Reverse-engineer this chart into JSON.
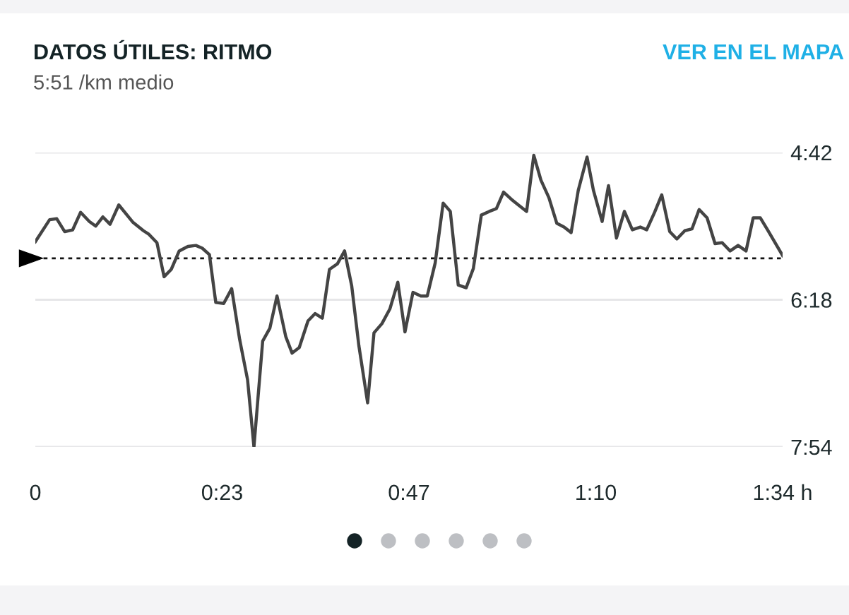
{
  "chart_data": {
    "type": "line",
    "title": "DATOS ÚTILES: RITMO",
    "subtitle": "5:51 /km medio",
    "annotations": [
      "VER EN EL MAPA"
    ],
    "x": [
      0,
      1.8,
      2.7,
      3.7,
      4.7,
      5.7,
      6.8,
      7.6,
      8.5,
      9.4,
      10.5,
      12.3,
      13.6,
      14.3,
      15.3,
      16.2,
      17.1,
      18.1,
      19.2,
      20.2,
      21.0,
      21.9,
      22.7,
      23.7,
      24.7,
      25.7,
      26.7,
      27.5,
      28.6,
      29.5,
      30.4,
      31.5,
      32.3,
      33.2,
      34.3,
      35.2,
      36.1,
      37.0,
      38.0,
      38.9,
      39.8,
      40.7,
      41.8,
      42.6,
      43.6,
      44.6,
      45.6,
      46.5,
      47.5,
      48.5,
      49.3,
      50.3,
      51.3,
      52.2,
      53.2,
      54.2,
      55.1,
      56.1,
      57.1,
      58.0,
      58.9,
      59.9,
      60.9,
      61.8,
      62.7,
      63.6,
      64.6,
      65.6,
      66.5,
      67.4,
      68.3,
      69.4,
      70.2,
      71.3,
      72.1,
      73.1,
      74.1,
      75.1,
      76.1,
      76.9,
      77.9,
      78.8,
      79.8,
      80.7,
      81.7,
      82.6,
      83.5,
      84.5,
      85.5,
      86.4,
      87.4,
      88.4,
      89.4,
      90.3,
      91.2,
      92.1,
      94.0
    ],
    "series": [
      {
        "color": "#444444",
        "values": [
          5.67,
          5.43,
          5.42,
          5.56,
          5.54,
          5.35,
          5.45,
          5.5,
          5.4,
          5.48,
          5.27,
          5.46,
          5.55,
          5.59,
          5.68,
          6.05,
          5.97,
          5.77,
          5.72,
          5.71,
          5.74,
          5.81,
          6.33,
          6.34,
          6.18,
          6.73,
          7.17,
          7.9,
          6.75,
          6.61,
          6.26,
          6.7,
          6.88,
          6.82,
          6.53,
          6.45,
          6.5,
          5.97,
          5.91,
          5.77,
          6.15,
          6.8,
          7.42,
          6.66,
          6.56,
          6.4,
          6.11,
          6.65,
          6.22,
          6.26,
          6.26,
          5.9,
          5.25,
          5.34,
          6.14,
          6.17,
          5.96,
          5.38,
          5.34,
          5.31,
          5.13,
          5.21,
          5.28,
          5.34,
          4.73,
          5.0,
          5.19,
          5.47,
          5.51,
          5.57,
          5.11,
          4.75,
          5.11,
          5.45,
          5.06,
          5.63,
          5.34,
          5.54,
          5.51,
          5.54,
          5.35,
          5.16,
          5.56,
          5.64,
          5.55,
          5.53,
          5.32,
          5.41,
          5.69,
          5.68,
          5.77,
          5.71,
          5.77,
          5.41,
          5.41,
          5.54,
          5.82
        ]
      }
    ],
    "xlim": [
      0,
      94
    ],
    "xticks": [
      0,
      {
        "value": 23.5,
        "label": "0:23"
      },
      {
        "value": 47,
        "label": "0:47"
      },
      {
        "value": 70.5,
        "label": "1:10"
      },
      {
        "value": 94,
        "label": "1:34 h"
      }
    ],
    "ylim": [
      7.9,
      4.7
    ],
    "yticks": [
      {
        "value": 4.7,
        "label": "4:42"
      },
      {
        "value": 6.3,
        "label": "6:18"
      },
      {
        "value": 7.9,
        "label": "7:54"
      }
    ],
    "ref_lines": [
      {
        "axis": "y",
        "value": 5.85,
        "color": "#111111",
        "line_style": "dotted"
      }
    ],
    "grid": "y",
    "legend": false,
    "marker": "none",
    "line_style": "solid"
  }
}
